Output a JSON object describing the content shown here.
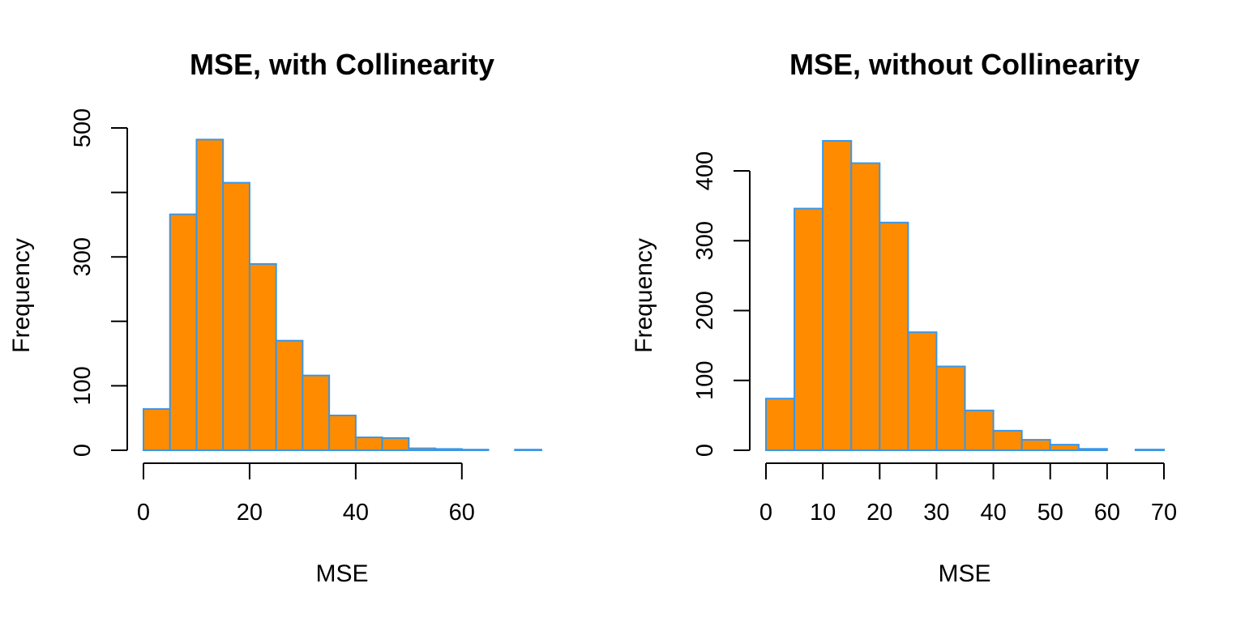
{
  "style": {
    "bar_fill": "#FF8C00",
    "bar_stroke": "#3A96E6",
    "axis_color": "#000000",
    "background": "#FFFFFF"
  },
  "chart_data": [
    {
      "type": "bar",
      "title": "MSE, with Collinearity",
      "xlabel": "MSE",
      "ylabel": "Frequency",
      "bin_edges": [
        0,
        5,
        10,
        15,
        20,
        25,
        30,
        35,
        40,
        45,
        50,
        55,
        60,
        65,
        70,
        75
      ],
      "values": [
        64,
        366,
        482,
        415,
        289,
        170,
        116,
        54,
        20,
        19,
        3,
        2,
        1,
        0,
        1
      ],
      "xlim": [
        0,
        75
      ],
      "ylim": [
        0,
        500
      ],
      "x_ticks": [
        0,
        20,
        40,
        60
      ],
      "y_ticks": [
        0,
        100,
        200,
        300,
        400,
        500
      ],
      "y_tick_labels": [
        "0",
        "100",
        "",
        "300",
        "",
        "500"
      ],
      "x_axis_end": 60,
      "grid": false,
      "legend": "none"
    },
    {
      "type": "bar",
      "title": "MSE, without Collinearity",
      "xlabel": "MSE",
      "ylabel": "Frequency",
      "bin_edges": [
        0,
        5,
        10,
        15,
        20,
        25,
        30,
        35,
        40,
        45,
        50,
        55,
        60,
        65,
        70
      ],
      "values": [
        74,
        346,
        443,
        411,
        326,
        169,
        120,
        57,
        28,
        15,
        8,
        2,
        0,
        1
      ],
      "xlim": [
        0,
        70
      ],
      "ylim": [
        0,
        400
      ],
      "x_ticks": [
        0,
        10,
        20,
        30,
        40,
        50,
        60,
        70
      ],
      "y_ticks": [
        0,
        100,
        200,
        300,
        400
      ],
      "y_tick_labels": [
        "0",
        "100",
        "200",
        "300",
        "400"
      ],
      "x_axis_end": 70,
      "grid": false,
      "legend": "none"
    }
  ]
}
